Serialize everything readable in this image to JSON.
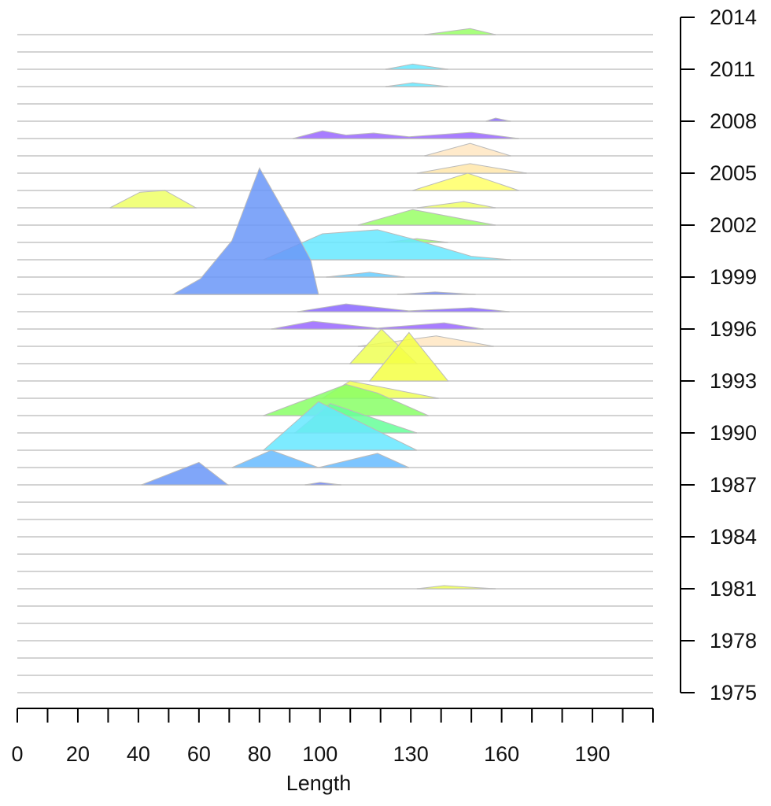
{
  "chart_data": {
    "type": "ridgeline",
    "x_label": "Length",
    "xlim": [
      0,
      210
    ],
    "xticks": [
      0,
      20,
      40,
      60,
      80,
      100,
      130,
      160,
      190
    ],
    "xminor_ticks": [
      10,
      30,
      50,
      70,
      90,
      110,
      120,
      140,
      150,
      170,
      180,
      200,
      210
    ],
    "ylim": [
      1975,
      2014
    ],
    "yticks": [
      1975,
      1978,
      1981,
      1984,
      1987,
      1990,
      1993,
      1996,
      1999,
      2002,
      2005,
      2008,
      2011,
      2014
    ],
    "ridges": [
      {
        "year": 2013,
        "color": "#99ff66",
        "x": [
          134.5,
          149.6,
          158
        ],
        "h": [
          0,
          0.35,
          0
        ]
      },
      {
        "year": 2011,
        "color": "#66e8ff",
        "x": [
          121.6,
          130.6,
          142.3
        ],
        "h": [
          0,
          0.3,
          0
        ]
      },
      {
        "year": 2010,
        "color": "#66e8ff",
        "x": [
          121.6,
          130.6,
          142.3
        ],
        "h": [
          0,
          0.22,
          0
        ]
      },
      {
        "year": 2008,
        "color": "#8866ff",
        "x": [
          154.8,
          158,
          163
        ],
        "h": [
          0,
          0.18,
          0
        ]
      },
      {
        "year": 2007,
        "color": "#9966ff",
        "x": [
          91,
          100.8,
          108.6,
          117.7,
          129.4,
          150,
          165.7
        ],
        "h": [
          0,
          0.45,
          0.2,
          0.32,
          0.1,
          0.36,
          0
        ]
      },
      {
        "year": 2006,
        "color": "#ffe6c2",
        "x": [
          134.5,
          149.6,
          163
        ],
        "h": [
          0,
          0.72,
          0
        ]
      },
      {
        "year": 2005,
        "color": "#ffe6aa",
        "x": [
          132,
          149.6,
          168.3
        ],
        "h": [
          0,
          0.55,
          0
        ]
      },
      {
        "year": 2004,
        "color": "#ffff66",
        "x": [
          130.6,
          148.8,
          165.7
        ],
        "h": [
          0,
          1.0,
          0
        ]
      },
      {
        "year": 2003,
        "color": "#eeff66",
        "x": [
          30.6,
          40.5,
          48.8,
          59
        ],
        "h": [
          0,
          0.9,
          1.0,
          0
        ]
      },
      {
        "year": 2003,
        "color": "#eeff66",
        "x": [
          132,
          147.5,
          158
        ],
        "h": [
          0,
          0.36,
          0
        ]
      },
      {
        "year": 2002,
        "color": "#99ff66",
        "x": [
          112.5,
          130.6,
          158
        ],
        "h": [
          0,
          0.9,
          0
        ]
      },
      {
        "year": 2001,
        "color": "#99ff66",
        "x": [
          121.6,
          132,
          142.3
        ],
        "h": [
          0,
          0.22,
          0
        ]
      },
      {
        "year": 2000,
        "color": "#66e8ff",
        "x": [
          81.3,
          100.8,
          119,
          130.6,
          150,
          163
        ],
        "h": [
          0,
          1.5,
          1.73,
          1.2,
          0.2,
          0
        ]
      },
      {
        "year": 1999,
        "color": "#66ccff",
        "x": [
          102,
          116.4,
          128
        ],
        "h": [
          0,
          0.28,
          0
        ]
      },
      {
        "year": 1998,
        "color": "#6a96f8",
        "x": [
          51.4,
          60.5,
          70.9,
          80,
          90.4,
          96.9,
          99.5
        ],
        "h": [
          0,
          0.9,
          3.1,
          7.3,
          4.1,
          2.0,
          0
        ]
      },
      {
        "year": 1998,
        "color": "#6a80f8",
        "x": [
          125.5,
          138,
          151.4
        ],
        "h": [
          0,
          0.14,
          0
        ]
      },
      {
        "year": 1997,
        "color": "#8866ff",
        "x": [
          92.5,
          108.6,
          129.4,
          150,
          162.6
        ],
        "h": [
          0,
          0.45,
          0.05,
          0.23,
          0
        ]
      },
      {
        "year": 1996,
        "color": "#9966ff",
        "x": [
          83.9,
          97.7,
          119,
          141,
          154
        ],
        "h": [
          0,
          0.45,
          0.05,
          0.36,
          0
        ]
      },
      {
        "year": 1995,
        "color": "#ffe6c2",
        "x": [
          112.5,
          138.4,
          157.4
        ],
        "h": [
          0,
          0.6,
          0
        ]
      },
      {
        "year": 1994,
        "color": "#eeff55",
        "x": [
          109.9,
          120.3,
          132
        ],
        "h": [
          0,
          2.0,
          0
        ]
      },
      {
        "year": 1993,
        "color": "#f5ff44",
        "x": [
          116.4,
          129.4,
          142.3
        ],
        "h": [
          0,
          2.8,
          0
        ]
      },
      {
        "year": 1992,
        "color": "#eeff55",
        "x": [
          100.8,
          109.9,
          139.2
        ],
        "h": [
          0,
          1.0,
          0
        ]
      },
      {
        "year": 1991,
        "color": "#88ff66",
        "x": [
          81.3,
          108.6,
          119,
          135.8
        ],
        "h": [
          0,
          1.8,
          1.3,
          0
        ]
      },
      {
        "year": 1990,
        "color": "#66ff99",
        "x": [
          91.7,
          103.4,
          132
        ],
        "h": [
          0,
          1.7,
          0
        ]
      },
      {
        "year": 1989,
        "color": "#66e8ff",
        "x": [
          81.3,
          99.5,
          132
        ],
        "h": [
          0,
          2.8,
          0
        ]
      },
      {
        "year": 1988,
        "color": "#66bbff",
        "x": [
          70.9,
          83.9,
          99.5,
          119,
          129.4
        ],
        "h": [
          0,
          1.0,
          0,
          0.82,
          0
        ]
      },
      {
        "year": 1987,
        "color": "#6a96f8",
        "x": [
          41,
          60,
          69.6
        ],
        "h": [
          0,
          1.3,
          0
        ]
      },
      {
        "year": 1987,
        "color": "#6a80f8",
        "x": [
          95,
          100,
          107
        ],
        "h": [
          0,
          0.14,
          0
        ]
      },
      {
        "year": 1981,
        "color": "#eeff55",
        "x": [
          132,
          141,
          158
        ],
        "h": [
          0,
          0.18,
          0
        ]
      }
    ]
  }
}
